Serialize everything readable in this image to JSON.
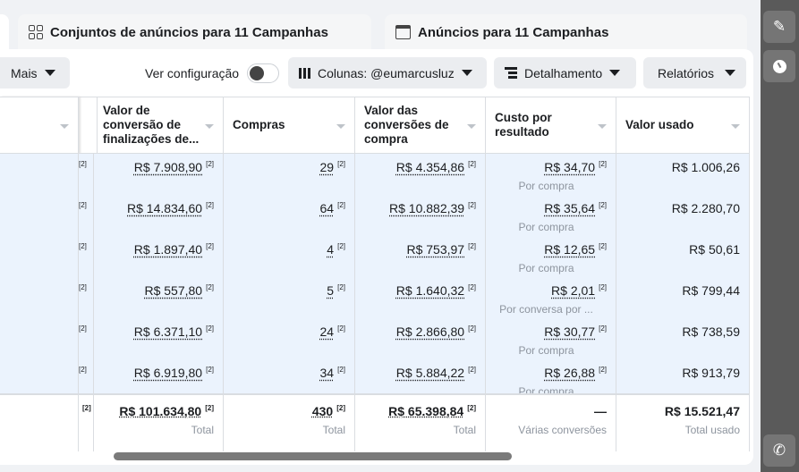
{
  "tabs": [
    {
      "label": "Conjuntos de anúncios para 11 Campanhas",
      "icon": "grid-icon"
    },
    {
      "label": "Anúncios para 11 Campanhas",
      "icon": "ad-window-icon"
    }
  ],
  "toolbar": {
    "more": "Mais",
    "view_setting": "Ver configuração",
    "columns": "Colunas: @eumarcusluz",
    "breakdown": "Detalhamento",
    "reports": "Relatórios"
  },
  "table": {
    "headers": [
      "Valor de conversão de finalizações de...",
      "Compras",
      "Valor das conversões de compra",
      "Custo por resultado",
      "Valor usado"
    ],
    "rows": [
      {
        "conv": "R$ 7.908,90",
        "compras": "29",
        "valor_compra": "R$ 4.354,86",
        "custo": "R$ 34,70",
        "custo_sub": "Por compra",
        "usado": "R$ 1.006,26"
      },
      {
        "conv": "R$ 14.834,60",
        "compras": "64",
        "valor_compra": "R$ 10.882,39",
        "custo": "R$ 35,64",
        "custo_sub": "Por compra",
        "usado": "R$ 2.280,70"
      },
      {
        "conv": "R$ 1.897,40",
        "compras": "4",
        "valor_compra": "R$ 753,97",
        "custo": "R$ 12,65",
        "custo_sub": "Por compra",
        "usado": "R$ 50,61"
      },
      {
        "conv": "R$ 557,80",
        "compras": "5",
        "valor_compra": "R$ 1.640,32",
        "custo": "R$ 2,01",
        "custo_sub": "Por conversa por ...",
        "usado": "R$ 799,44"
      },
      {
        "conv": "R$ 6.371,10",
        "compras": "24",
        "valor_compra": "R$ 2.866,80",
        "custo": "R$ 30,77",
        "custo_sub": "Por compra",
        "usado": "R$ 738,59"
      },
      {
        "conv": "R$ 6.919,80",
        "compras": "34",
        "valor_compra": "R$ 5.884,22",
        "custo": "R$ 26,88",
        "custo_sub": "Por compra",
        "usado": "R$ 913,79"
      }
    ],
    "footnote": "[2]",
    "totals": {
      "conv": "R$ 101.634,80",
      "conv_label": "Total",
      "compras": "430",
      "compras_label": "Total",
      "valor_compra": "R$ 65.398,84",
      "valor_compra_label": "Total",
      "custo": "—",
      "custo_label": "Várias conversões",
      "usado": "R$ 15.521,47",
      "usado_label": "Total usado"
    }
  },
  "sidebar": {
    "icons": [
      "pencil-icon",
      "clock-icon",
      "phone-icon"
    ]
  }
}
